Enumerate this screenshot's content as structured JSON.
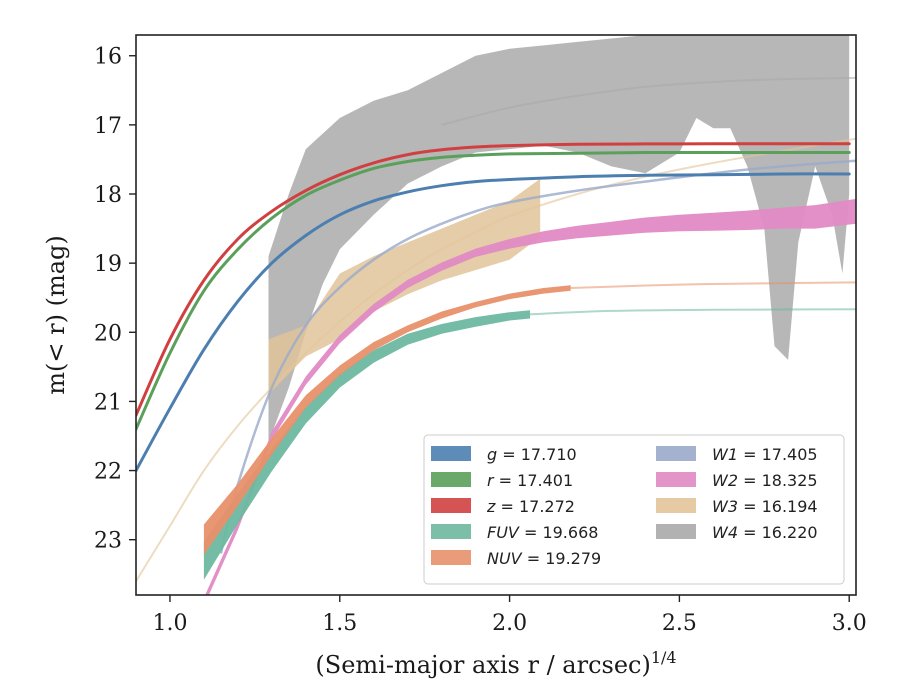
{
  "chart_data": {
    "type": "line",
    "title": "",
    "xlabel": "(Semi-major axis r / arcsec)",
    "xlabel_exp": "1/4",
    "ylabel": "m(< r) (mag)",
    "xlim": [
      0.9,
      3.02
    ],
    "ylim": [
      23.8,
      15.7
    ],
    "y_inverted": true,
    "grid": false,
    "legend_placement": "lower-right",
    "x_ticks": [
      "1.0",
      "1.5",
      "2.0",
      "2.5",
      "3.0"
    ],
    "y_ticks": [
      "16",
      "17",
      "18",
      "19",
      "20",
      "21",
      "22",
      "23"
    ],
    "series": [
      {
        "name": "g",
        "value": "17.710",
        "label": "g = 17.710",
        "color": "#4c7fb0",
        "kind": "line",
        "x": [
          0.9,
          1.0,
          1.1,
          1.2,
          1.3,
          1.4,
          1.5,
          1.6,
          1.7,
          1.8,
          1.9,
          2.0,
          2.2,
          2.4,
          2.6,
          2.8,
          3.0
        ],
        "y": [
          22.0,
          21.1,
          20.25,
          19.55,
          19.0,
          18.6,
          18.3,
          18.1,
          17.97,
          17.88,
          17.82,
          17.79,
          17.75,
          17.73,
          17.72,
          17.71,
          17.71
        ]
      },
      {
        "name": "r",
        "value": "17.401",
        "label": "r = 17.401",
        "color": "#5aa05a",
        "kind": "line",
        "x": [
          0.9,
          1.0,
          1.1,
          1.2,
          1.3,
          1.4,
          1.5,
          1.6,
          1.7,
          1.8,
          1.9,
          2.0,
          2.2,
          2.4,
          2.6,
          2.8,
          3.0
        ],
        "y": [
          21.4,
          20.3,
          19.4,
          18.8,
          18.35,
          18.02,
          17.8,
          17.63,
          17.53,
          17.47,
          17.44,
          17.42,
          17.41,
          17.4,
          17.4,
          17.4,
          17.4
        ]
      },
      {
        "name": "z",
        "value": "17.272",
        "label": "z = 17.272",
        "color": "#d04040",
        "kind": "line",
        "x": [
          0.9,
          1.0,
          1.1,
          1.2,
          1.3,
          1.4,
          1.5,
          1.6,
          1.7,
          1.8,
          1.9,
          2.0,
          2.2,
          2.4,
          2.6,
          2.8,
          3.0
        ],
        "y": [
          21.2,
          20.1,
          19.25,
          18.65,
          18.25,
          17.95,
          17.72,
          17.55,
          17.43,
          17.36,
          17.32,
          17.3,
          17.28,
          17.275,
          17.273,
          17.272,
          17.272
        ]
      },
      {
        "name": "FUV",
        "value": "19.668",
        "label": "FUV = 19.668",
        "color": "#6db8a0",
        "kind": "band",
        "x": [
          1.1,
          1.2,
          1.3,
          1.4,
          1.5,
          1.6,
          1.7,
          1.8,
          1.9,
          2.0,
          2.06
        ],
        "y": [
          23.3,
          22.55,
          21.85,
          21.2,
          20.7,
          20.35,
          20.1,
          19.95,
          19.85,
          19.77,
          19.74
        ],
        "width": [
          0.28,
          0.22,
          0.16,
          0.12,
          0.1,
          0.09,
          0.08,
          0.07,
          0.07,
          0.06,
          0.06
        ],
        "ext_x": [
          2.06,
          2.3,
          2.6,
          3.02
        ],
        "ext_y": [
          19.74,
          19.69,
          19.675,
          19.668
        ]
      },
      {
        "name": "NUV",
        "value": "19.279",
        "label": "NUV = 19.279",
        "color": "#e8906a",
        "kind": "band",
        "x": [
          1.1,
          1.2,
          1.3,
          1.4,
          1.5,
          1.6,
          1.7,
          1.8,
          1.9,
          2.0,
          2.1,
          2.18
        ],
        "y": [
          23.0,
          22.35,
          21.65,
          21.0,
          20.55,
          20.2,
          19.95,
          19.75,
          19.6,
          19.48,
          19.4,
          19.36
        ],
        "width": [
          0.22,
          0.16,
          0.12,
          0.09,
          0.07,
          0.06,
          0.05,
          0.05,
          0.04,
          0.04,
          0.04,
          0.04
        ],
        "ext_x": [
          2.18,
          2.5,
          2.8,
          3.02
        ],
        "ext_y": [
          19.36,
          19.31,
          19.29,
          19.279
        ]
      },
      {
        "name": "W1",
        "value": "17.405",
        "label": "W1 = 17.405",
        "color": "#9aaaca",
        "kind": "line",
        "x": [
          1.15,
          1.2,
          1.3,
          1.4,
          1.5,
          1.6,
          1.7,
          1.8,
          1.9,
          2.0,
          2.2,
          2.4,
          2.6,
          2.8,
          3.02
        ],
        "y": [
          23.2,
          22.2,
          20.8,
          19.9,
          19.35,
          18.95,
          18.65,
          18.43,
          18.25,
          18.12,
          17.95,
          17.82,
          17.7,
          17.6,
          17.52
        ]
      },
      {
        "name": "W2",
        "value": "18.325",
        "label": "W2 = 18.325",
        "color": "#e08ac4",
        "kind": "band",
        "x": [
          1.1,
          1.2,
          1.3,
          1.4,
          1.5,
          1.6,
          1.7,
          1.8,
          1.9,
          2.0,
          2.1,
          2.2,
          2.3,
          2.4,
          2.5,
          2.6,
          2.7,
          2.8,
          2.9,
          3.02
        ],
        "y": [
          23.9,
          22.8,
          21.5,
          20.7,
          20.1,
          19.65,
          19.3,
          19.05,
          18.85,
          18.72,
          18.62,
          18.55,
          18.5,
          18.45,
          18.42,
          18.4,
          18.38,
          18.35,
          18.33,
          18.25
        ],
        "width": [
          0.06,
          0.06,
          0.06,
          0.06,
          0.06,
          0.06,
          0.06,
          0.06,
          0.06,
          0.07,
          0.08,
          0.09,
          0.1,
          0.11,
          0.12,
          0.13,
          0.14,
          0.15,
          0.17,
          0.18
        ]
      },
      {
        "name": "W3",
        "value": "16.194",
        "label": "W3 = 16.194",
        "color": "#e2c49a",
        "kind": "line",
        "x": [
          0.9,
          1.0,
          1.1,
          1.2,
          1.3,
          1.4,
          1.5,
          1.6,
          1.7,
          1.8,
          1.9,
          2.0,
          2.2,
          2.4,
          2.6,
          2.8,
          3.02
        ],
        "y": [
          23.6,
          22.8,
          22.0,
          21.35,
          20.8,
          20.3,
          19.85,
          19.45,
          19.1,
          18.8,
          18.55,
          18.32,
          18.0,
          17.75,
          17.55,
          17.38,
          17.2
        ],
        "band_x": [
          1.29,
          1.4,
          1.5,
          1.6,
          1.7,
          1.8,
          1.9,
          2.0,
          2.09
        ],
        "band_lo": [
          20.1,
          19.9,
          19.15,
          18.9,
          18.7,
          18.5,
          18.3,
          18.1,
          17.78
        ],
        "band_hi": [
          20.9,
          20.35,
          20.1,
          19.7,
          19.45,
          19.25,
          19.1,
          18.95,
          18.62
        ]
      },
      {
        "name": "W4",
        "value": "16.220",
        "label": "W4 = 16.220",
        "color": "#aaaaaa",
        "kind": "band",
        "x_top": [
          1.29,
          1.35,
          1.4,
          1.5,
          1.6,
          1.7,
          1.8,
          1.9,
          2.0,
          2.1,
          2.2,
          2.3,
          2.4,
          2.5,
          2.6,
          2.7,
          2.8,
          2.9,
          3.0
        ],
        "y_top": [
          18.9,
          18.0,
          17.35,
          16.9,
          16.65,
          16.5,
          16.25,
          16.0,
          15.9,
          15.85,
          15.8,
          15.75,
          15.7,
          15.7,
          15.7,
          15.7,
          15.7,
          15.7,
          15.7
        ],
        "x_bot": [
          3.0,
          2.98,
          2.95,
          2.9,
          2.85,
          2.82,
          2.78,
          2.75,
          2.7,
          2.65,
          2.6,
          2.55,
          2.5,
          2.4,
          2.3,
          2.2,
          2.1,
          2.0,
          1.9,
          1.8,
          1.7,
          1.6,
          1.5,
          1.45,
          1.4,
          1.35,
          1.29
        ],
        "y_bot": [
          18.0,
          19.15,
          18.3,
          17.6,
          18.7,
          20.4,
          20.2,
          18.5,
          17.6,
          17.05,
          17.05,
          16.9,
          17.4,
          17.7,
          17.6,
          17.4,
          17.3,
          17.35,
          17.4,
          17.6,
          17.85,
          18.3,
          18.8,
          19.3,
          20.0,
          20.8,
          21.6
        ],
        "ext_x": [
          1.8,
          2.0,
          2.2,
          2.4,
          2.6,
          2.8,
          3.02
        ],
        "ext_y": [
          17.0,
          16.75,
          16.58,
          16.45,
          16.38,
          16.34,
          16.32
        ]
      }
    ]
  }
}
